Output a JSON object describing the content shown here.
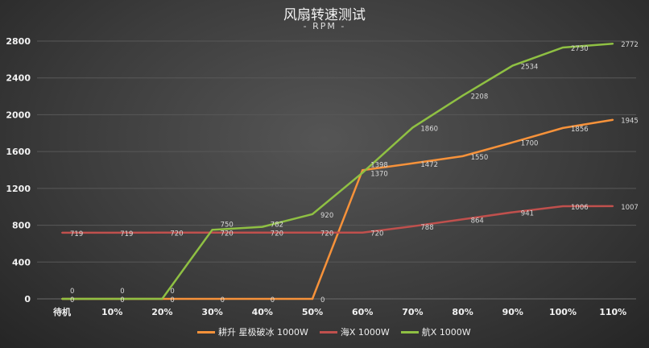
{
  "chart_data": {
    "type": "line",
    "title": "风扇转速测试",
    "subtitle": "- RPM -",
    "categories": [
      "待机",
      "10%",
      "20%",
      "30%",
      "40%",
      "50%",
      "60%",
      "70%",
      "80%",
      "90%",
      "100%",
      "110%"
    ],
    "ylim": [
      0,
      2800
    ],
    "yticks": [
      0,
      400,
      800,
      1200,
      1600,
      2000,
      2400,
      2800
    ],
    "grid": true,
    "legend": "bottom",
    "series": [
      {
        "name": "耕升 星极破冰 1000W",
        "color": "#f7923a",
        "values": [
          0,
          0,
          0,
          0,
          0,
          0,
          1398,
          1472,
          1550,
          1700,
          1856,
          1945
        ]
      },
      {
        "name": "海X 1000W",
        "color": "#c0504d",
        "values": [
          719,
          719,
          720,
          720,
          720,
          720,
          720,
          788,
          864,
          941,
          1006,
          1007
        ]
      },
      {
        "name": "航X 1000W",
        "color": "#8fc043",
        "values": [
          0,
          0,
          0,
          750,
          782,
          920,
          1370,
          1860,
          2208,
          2534,
          2730,
          2772
        ]
      }
    ]
  }
}
